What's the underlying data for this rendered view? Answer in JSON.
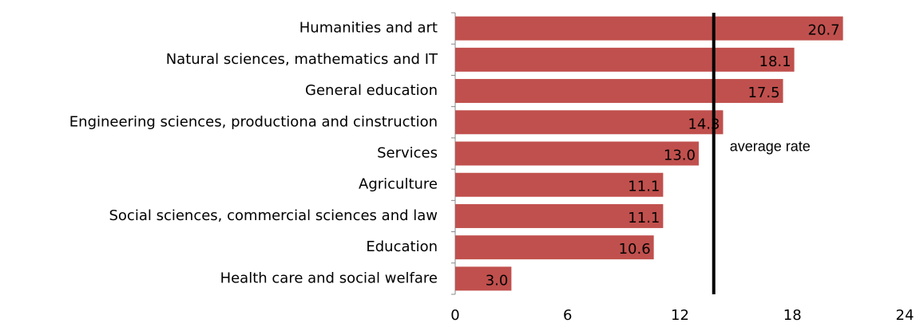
{
  "chart_data": {
    "type": "bar",
    "orientation": "horizontal",
    "categories": [
      "Humanities and art",
      "Natural sciences, mathematics and IT",
      "General education",
      "Engineering sciences, productiona and cinstruction",
      "Services",
      "Agriculture",
      "Social sciences, commercial sciences and law",
      "Education",
      "Health care and social welfare"
    ],
    "values": [
      20.7,
      18.1,
      17.5,
      14.3,
      13,
      11.1,
      11.1,
      10.6,
      3
    ],
    "value_labels": [
      "20.7",
      "18.1",
      "17.5",
      "14.3",
      "13.0",
      "11.1",
      "11.1",
      "10.6",
      "3.0"
    ],
    "color": "#c0504d",
    "xlim": [
      0,
      24
    ],
    "xticks": [
      0,
      6,
      12,
      18,
      24
    ],
    "average_line": {
      "value": 13.8,
      "label": "average rate",
      "color": "#000000"
    }
  }
}
